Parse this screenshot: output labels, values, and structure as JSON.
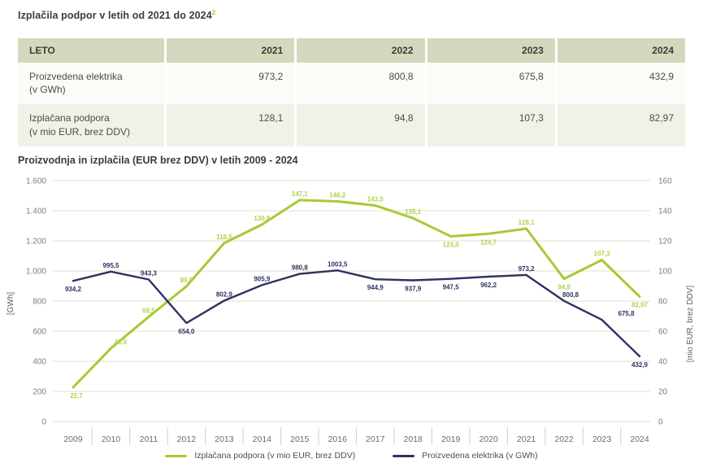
{
  "table_section": {
    "title": "Izplačila podpor v letih od 2021 do 2024",
    "title_superscript": "2",
    "table": {
      "header": [
        "LETO",
        "2021",
        "2022",
        "2023",
        "2024"
      ],
      "rows": [
        {
          "label_line1": "Proizvedena elektrika",
          "label_line2": "(v GWh)",
          "values": [
            "973,2",
            "800,8",
            "675,8",
            "432,9"
          ]
        },
        {
          "label_line1": "Izplačana podpora",
          "label_line2": "(v mio EUR, brez DDV)",
          "values": [
            "128,1",
            "94,8",
            "107,3",
            "82,97"
          ]
        }
      ]
    }
  },
  "chart_section": {
    "title": "Proizvodnja in izplačila (EUR brez DDV) v letih 2009 - 2024"
  },
  "chart_data": {
    "type": "line",
    "x": [
      2009,
      2010,
      2011,
      2012,
      2013,
      2014,
      2015,
      2016,
      2017,
      2018,
      2019,
      2020,
      2021,
      2022,
      2023,
      2024
    ],
    "series": [
      {
        "name": "Izplačana podpora (v mio EUR, brez DDV)",
        "axis": "right",
        "color": "#a6ca35",
        "label_color": "#b2d14c",
        "values": [
          22.7,
          48.6,
          69.5,
          89.8,
          118.5,
          130.8,
          147.1,
          146.2,
          143.5,
          135.1,
          123.0,
          124.7,
          128.1,
          94.8,
          107.3,
          82.97
        ],
        "labels": [
          "22,7",
          "48,6",
          "69,5",
          "89,8",
          "118,5",
          "130,8",
          "147,1",
          "146,2",
          "143,5",
          "135,1",
          "123,0",
          "124,7",
          "128,1",
          "94,8",
          "107,3",
          "82,97"
        ],
        "label_side": [
          "below",
          "above",
          "above",
          "above",
          "above",
          "above",
          "above",
          "above",
          "above",
          "above",
          "below",
          "below",
          "above",
          "below",
          "above",
          "below"
        ],
        "label_dx": [
          4,
          12,
          0,
          0,
          0,
          0,
          0,
          0,
          0,
          0,
          0,
          0,
          0,
          0,
          0,
          0
        ]
      },
      {
        "name": "Proizvedena elektrika (v GWh)",
        "axis": "left",
        "color": "#2e3262",
        "label_color": "#2e3262",
        "values": [
          934.2,
          995.5,
          943.3,
          654.0,
          802.9,
          905.9,
          980.8,
          1003.5,
          944.9,
          937.9,
          947.5,
          962.2,
          973.2,
          800.8,
          675.8,
          432.9
        ],
        "labels": [
          "934,2",
          "995,5",
          "943,3",
          "654,0",
          "802,9",
          "905,9",
          "980,8",
          "1003,5",
          "944,9",
          "937,9",
          "947,5",
          "962,2",
          "973,2",
          "800,8",
          "675,8",
          "432,9"
        ],
        "label_side": [
          "below",
          "above",
          "above",
          "below",
          "above",
          "above",
          "above",
          "above",
          "below",
          "below",
          "below",
          "below",
          "above",
          "above",
          "above",
          "below"
        ],
        "label_dx": [
          0,
          0,
          0,
          0,
          0,
          0,
          0,
          0,
          0,
          0,
          0,
          0,
          0,
          8,
          30,
          0
        ]
      }
    ],
    "left_axis": {
      "label": "[GWh]",
      "min": 0,
      "max": 1600,
      "step": 200,
      "ticks": [
        "1.600",
        "1.400",
        "1.200",
        "1.000",
        "800",
        "600",
        "400",
        "200",
        "0"
      ]
    },
    "right_axis": {
      "label": "[mio EUR, brez DDV]",
      "min": 0,
      "max": 160,
      "step": 20,
      "ticks": [
        "160",
        "140",
        "120",
        "100",
        "80",
        "60",
        "40",
        "20",
        "0"
      ]
    },
    "grid": true,
    "legend_position": "bottom",
    "title": "Proizvodnja in izplačila (EUR brez DDV) v letih 2009 - 2024",
    "xlabel": "",
    "ylabel_left": "[GWh]",
    "ylabel_right": "[mio EUR, brez DDV]"
  }
}
